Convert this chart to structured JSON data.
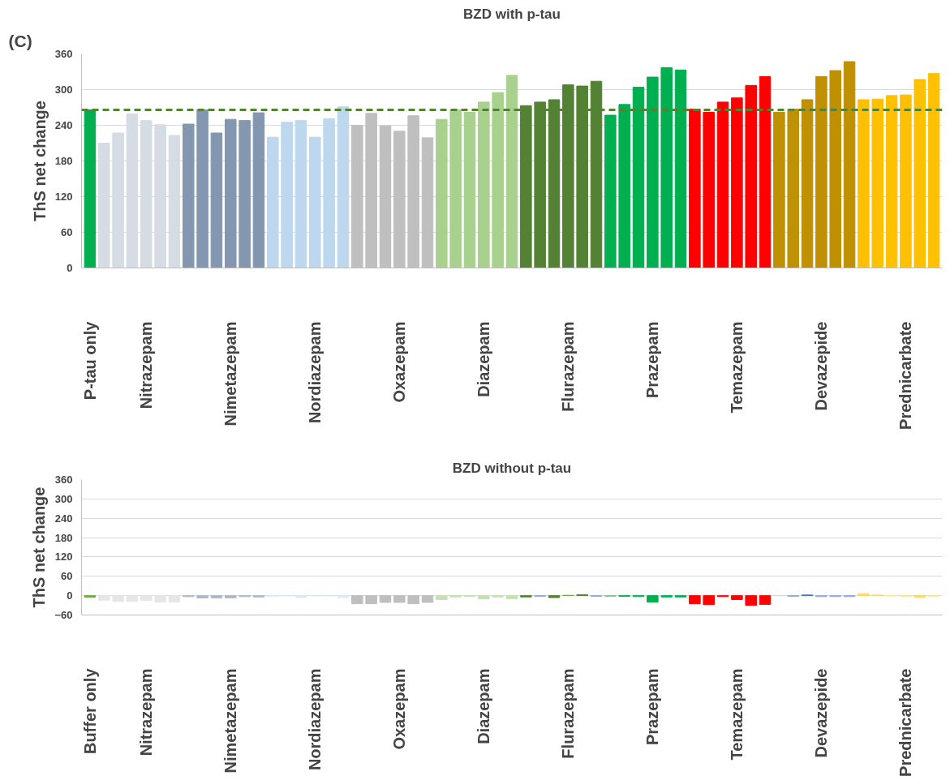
{
  "chart_data": [
    {
      "type": "bar",
      "title": "BZD with p-tau",
      "ylabel": "ThS net change",
      "annotations": [
        "(C)"
      ],
      "categories": [
        "P-tau only",
        null,
        null,
        null,
        "Nitrazepam",
        null,
        null,
        null,
        null,
        null,
        "Nimetazepam",
        null,
        null,
        null,
        null,
        null,
        "Nordiazepam",
        null,
        null,
        null,
        null,
        null,
        "Oxazepam",
        null,
        null,
        null,
        null,
        null,
        "Diazepam",
        null,
        null,
        null,
        null,
        null,
        "Flurazepam",
        null,
        null,
        null,
        null,
        null,
        "Prazepam",
        null,
        null,
        null,
        null,
        null,
        "Temazepam",
        null,
        null,
        null,
        null,
        null,
        "Devazepide",
        null,
        null,
        null,
        null,
        null,
        "Prednicarbate",
        null,
        null
      ],
      "values": [
        266,
        210,
        227,
        259,
        248,
        241,
        223,
        242,
        266,
        227,
        250,
        248,
        261,
        220,
        245,
        248,
        220,
        251,
        271,
        240,
        260,
        239,
        230,
        256,
        219,
        250,
        266,
        262,
        279,
        295,
        324,
        273,
        279,
        283,
        308,
        306,
        314,
        257,
        275,
        304,
        321,
        337,
        333,
        267,
        262,
        279,
        286,
        307,
        322,
        262,
        267,
        283,
        322,
        332,
        347,
        283,
        284,
        290,
        291,
        317,
        327
      ],
      "colors": [
        "#00b050",
        "#d6dce4",
        "#d6dce4",
        "#d6dce4",
        "#d6dce4",
        "#d6dce4",
        "#d6dce4",
        "#8497b0",
        "#8497b0",
        "#8497b0",
        "#8497b0",
        "#8497b0",
        "#8497b0",
        "#bdd7ee",
        "#bdd7ee",
        "#bdd7ee",
        "#bdd7ee",
        "#bdd7ee",
        "#bdd7ee",
        "#bfbfbf",
        "#bfbfbf",
        "#bfbfbf",
        "#bfbfbf",
        "#bfbfbf",
        "#bfbfbf",
        "#a9d18e",
        "#a9d18e",
        "#a9d18e",
        "#a9d18e",
        "#a9d18e",
        "#a9d18e",
        "#548235",
        "#548235",
        "#548235",
        "#548235",
        "#548235",
        "#548235",
        "#00b050",
        "#00b050",
        "#00b050",
        "#00b050",
        "#00b050",
        "#00b050",
        "#ff0000",
        "#ff0000",
        "#ff0000",
        "#ff0000",
        "#ff0000",
        "#ff0000",
        "#bf9000",
        "#bf9000",
        "#bf9000",
        "#bf9000",
        "#bf9000",
        "#bf9000",
        "#ffc000",
        "#ffc000",
        "#ffc000",
        "#ffc000",
        "#ffc000",
        "#ffc000"
      ],
      "ylim": [
        0,
        360
      ],
      "yticks": [
        0,
        60,
        120,
        180,
        240,
        300,
        360
      ],
      "grid": "y",
      "ref_lines": [
        {
          "axis": "y",
          "value": 266,
          "label": null,
          "color": "#548235",
          "line_style": "dashed"
        }
      ]
    },
    {
      "type": "bar",
      "title": "BZD without p-tau",
      "ylabel": "ThS net change",
      "categories": [
        "Buffer only",
        null,
        null,
        null,
        "Nitrazepam",
        null,
        null,
        null,
        null,
        null,
        "Nimetazepam",
        null,
        null,
        null,
        null,
        null,
        "Nordiazepam",
        null,
        null,
        null,
        null,
        null,
        "Oxazepam",
        null,
        null,
        null,
        null,
        null,
        "Diazepam",
        null,
        null,
        null,
        null,
        null,
        "Flurazepam",
        null,
        null,
        null,
        null,
        null,
        "Prazepam",
        null,
        null,
        null,
        null,
        null,
        "Temazepam",
        null,
        null,
        null,
        null,
        null,
        "Devazepide",
        null,
        null,
        null,
        null,
        null,
        "Prednicarbate",
        null,
        null
      ],
      "values": [
        -5,
        -14,
        -18,
        -18,
        -15,
        -20,
        -20,
        -3,
        -7,
        -7,
        -7,
        -3,
        -4,
        -2,
        -1,
        -6,
        -1,
        -1,
        -6,
        -25,
        -25,
        -21,
        -21,
        -25,
        -21,
        -12,
        -4,
        -2,
        -10,
        -4,
        -10,
        -4,
        -2,
        -6,
        1,
        3,
        -2,
        -2,
        -2,
        -3,
        -20,
        -4,
        -4,
        -25,
        -28,
        -3,
        -12,
        -30,
        -27,
        0,
        -2,
        2,
        -3,
        -3,
        -3,
        6,
        2,
        -1,
        -3,
        -5,
        -3
      ],
      "colors": [
        "#70ad47",
        "#e7e6e6",
        "#e7e6e6",
        "#e7e6e6",
        "#e7e6e6",
        "#e7e6e6",
        "#e7e6e6",
        "#adb9ca",
        "#adb9ca",
        "#adb9ca",
        "#adb9ca",
        "#adb9ca",
        "#adb9ca",
        "#ddebf7",
        "#ddebf7",
        "#ddebf7",
        "#ddebf7",
        "#ddebf7",
        "#ddebf7",
        "#bfbfbf",
        "#bfbfbf",
        "#bfbfbf",
        "#bfbfbf",
        "#bfbfbf",
        "#bfbfbf",
        "#c5e0b4",
        "#c5e0b4",
        "#c5e0b4",
        "#c5e0b4",
        "#c5e0b4",
        "#c5e0b4",
        "#548235",
        "#8faadc",
        "#548235",
        "#70ad47",
        "#548235",
        "#8faadc",
        "#70d090",
        "#00b050",
        "#00b050",
        "#00b050",
        "#00b050",
        "#00b050",
        "#ff0000",
        "#ff0000",
        "#ff0000",
        "#ff0000",
        "#ff0000",
        "#ff0000",
        "#d9d9d9",
        "#8faadc",
        "#4472c4",
        "#8faadc",
        "#8faadc",
        "#8faadc",
        "#ffd966",
        "#ffd966",
        "#ffe699",
        "#ffe699",
        "#ffd966",
        "#ffe699"
      ],
      "ylim": [
        -60,
        360
      ],
      "yticks": [
        -60,
        0,
        60,
        120,
        180,
        240,
        300,
        360
      ],
      "grid": "y"
    }
  ]
}
